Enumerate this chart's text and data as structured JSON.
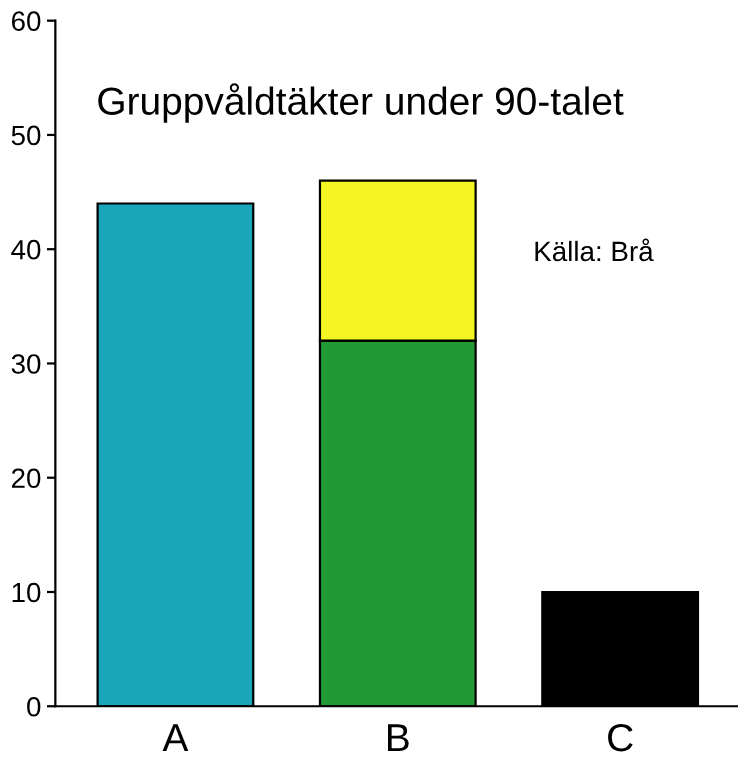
{
  "chart_data": {
    "type": "bar",
    "title": "Gruppvåldtäkter under 90-talet",
    "annotations": [
      "Källa: Brå"
    ],
    "categories": [
      "A",
      "B",
      "C"
    ],
    "stacked": true,
    "series": [
      {
        "colors": [
          "#1ba6bc",
          "#219a35",
          "#000000"
        ],
        "values": [
          44,
          32,
          10
        ]
      },
      {
        "color": "#f5f523",
        "values": [
          null,
          14,
          null
        ]
      }
    ],
    "ylim": [
      0,
      60
    ],
    "yticks": [
      0,
      10,
      20,
      30,
      40,
      50,
      60
    ],
    "grid": false,
    "legend": false
  }
}
